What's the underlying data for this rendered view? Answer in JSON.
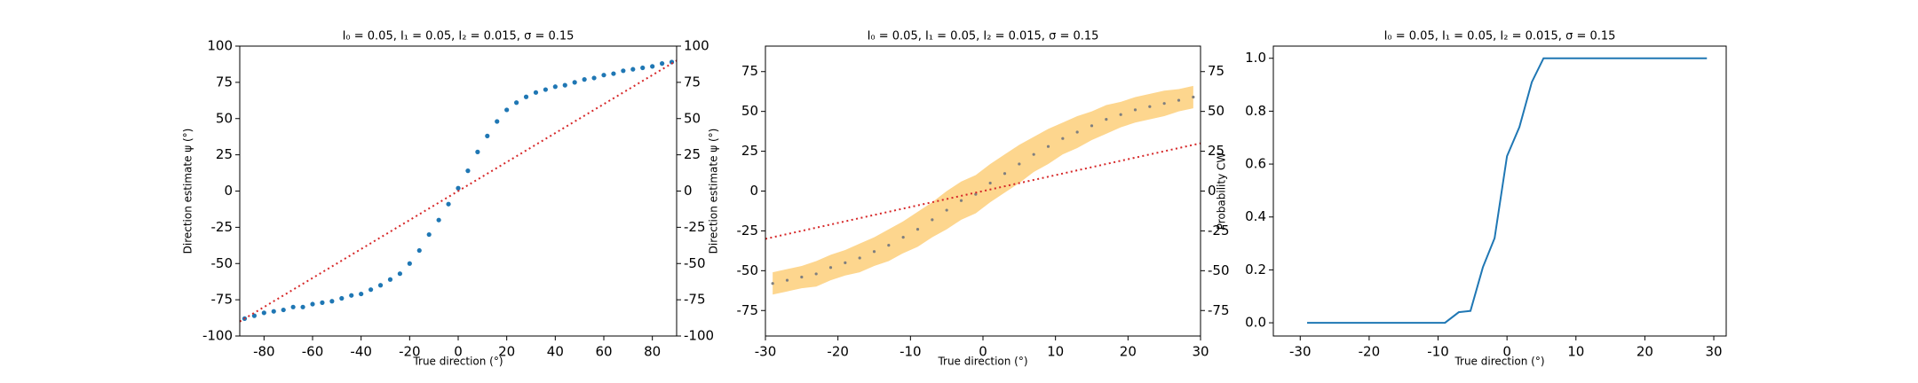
{
  "chart_data": [
    {
      "type": "scatter",
      "title": "I₀ = 0.05, I₁ = 0.05, I₂ = 0.015, σ = 0.15",
      "xlabel": "True direction (°)",
      "ylabel": "Direction estimate ψ (°)",
      "x": [
        -88,
        -84,
        -80,
        -76,
        -72,
        -68,
        -64,
        -60,
        -56,
        -52,
        -48,
        -44,
        -40,
        -36,
        -32,
        -28,
        -24,
        -20,
        -16,
        -12,
        -8,
        -4,
        0,
        4,
        8,
        12,
        16,
        20,
        24,
        28,
        32,
        36,
        40,
        44,
        48,
        52,
        56,
        60,
        64,
        68,
        72,
        76,
        80,
        84,
        88
      ],
      "values": [
        -88,
        -86,
        -84,
        -83,
        -82,
        -80,
        -80,
        -78,
        -77,
        -76,
        -74,
        -72,
        -71,
        -68,
        -65,
        -61,
        -57,
        -50,
        -41,
        -30,
        -20,
        -9,
        2,
        14,
        27,
        38,
        48,
        56,
        61,
        65,
        68,
        70,
        72,
        73,
        75,
        77,
        78,
        80,
        81,
        83,
        84,
        85,
        86,
        88,
        89
      ],
      "color": "#1f77b4",
      "reference": {
        "x": [
          -90,
          90
        ],
        "values": [
          -90,
          90
        ],
        "color": "#d62728"
      },
      "xlim": [
        -90,
        90
      ],
      "ylim": [
        -100,
        100
      ],
      "xticks": [
        -80,
        -60,
        -40,
        -20,
        0,
        20,
        40,
        60,
        80
      ],
      "yticks": [
        -100,
        -75,
        -50,
        -25,
        0,
        25,
        50,
        75,
        100
      ],
      "y2lim": [
        -100,
        100
      ],
      "y2ticks": [
        -100,
        -75,
        -50,
        -25,
        0,
        25,
        50,
        75,
        100
      ]
    },
    {
      "type": "band",
      "title": "I₀ = 0.05, I₁ = 0.05, I₂ = 0.015, σ = 0.15",
      "xlabel": "True direction (°)",
      "ylabel": "Direction estimate ψ (°)",
      "x": [
        -29,
        -27,
        -25,
        -23,
        -21,
        -19,
        -17,
        -15,
        -13,
        -11,
        -9,
        -7,
        -5,
        -3,
        -1,
        1,
        3,
        5,
        7,
        9,
        11,
        13,
        15,
        17,
        19,
        21,
        23,
        25,
        27,
        29
      ],
      "values": [
        -58,
        -56,
        -54,
        -52,
        -48,
        -45,
        -42,
        -38,
        -34,
        -29,
        -24,
        -18,
        -12,
        -6,
        -2,
        5,
        11,
        17,
        23,
        28,
        33,
        37,
        41,
        45,
        48,
        51,
        53,
        55,
        57,
        59
      ],
      "lower": [
        -65,
        -63,
        -61,
        -60,
        -56,
        -53,
        -51,
        -47,
        -44,
        -39,
        -35,
        -29,
        -24,
        -18,
        -14,
        -7,
        -1,
        5,
        12,
        17,
        23,
        27,
        32,
        36,
        40,
        43,
        45,
        47,
        50,
        52
      ],
      "upper": [
        -51,
        -49,
        -47,
        -44,
        -40,
        -37,
        -33,
        -29,
        -24,
        -19,
        -13,
        -7,
        0,
        6,
        10,
        17,
        23,
        29,
        34,
        39,
        43,
        47,
        50,
        54,
        56,
        59,
        61,
        63,
        64,
        66
      ],
      "color": "#7f7f7f",
      "band_color": "#fdd68e",
      "reference": {
        "x": [
          -30,
          30
        ],
        "values": [
          -30,
          30
        ],
        "color": "#d62728"
      },
      "xlim": [
        -30,
        30
      ],
      "ylim": [
        -91,
        91
      ],
      "xticks": [
        -30,
        -20,
        -10,
        0,
        10,
        20,
        30
      ],
      "yticks": [
        -75,
        -50,
        -25,
        0,
        25,
        50,
        75
      ],
      "y2lim": [
        -91,
        91
      ],
      "y2ticks": [
        -75,
        -50,
        -25,
        0,
        25,
        50,
        75
      ]
    },
    {
      "type": "line",
      "title": "I₀ = 0.05, I₁ = 0.05, I₂ = 0.015, σ = 0.15",
      "xlabel": "True direction (°)",
      "ylabel": "Probability CW",
      "x": [
        -29,
        -9,
        -7,
        -5.3,
        -3.5,
        -1.8,
        0,
        1.8,
        3.6,
        5.3,
        29
      ],
      "values": [
        0,
        0,
        0.04,
        0.045,
        0.21,
        0.32,
        0.63,
        0.74,
        0.91,
        1.0,
        1.0
      ],
      "color": "#1f77b4",
      "xlim": [
        -33.9,
        31.8
      ],
      "ylim": [
        -0.05,
        1.046
      ],
      "xticks": [
        -30,
        -20,
        -10,
        0,
        10,
        20,
        30
      ],
      "yticks": [
        {
          "value": 0,
          "label": "0.0"
        },
        0.2,
        0.4,
        0.6,
        0.8,
        {
          "value": 1,
          "label": "1.0"
        }
      ]
    }
  ]
}
